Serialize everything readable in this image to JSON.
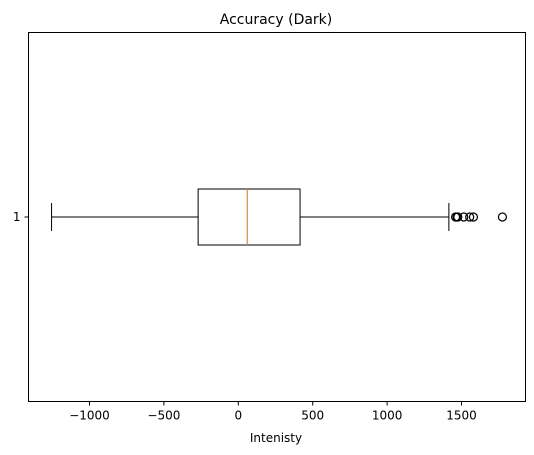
{
  "chart_data": {
    "type": "boxplot",
    "orientation": "horizontal",
    "title": "Accuracy (Dark)",
    "xlabel": "Intenisty",
    "ylabel": "",
    "xlim": [
      -1410,
      1930
    ],
    "x_ticks": [
      -1000,
      -500,
      0,
      500,
      1000,
      1500
    ],
    "x_tick_labels": [
      "−1000",
      "−500",
      "0",
      "500",
      "1000",
      "1500"
    ],
    "y_tick_labels": [
      "1"
    ],
    "grid": false,
    "boxes": [
      {
        "label": "1",
        "whisker_low": -1255,
        "q1": -270,
        "median": 60,
        "q3": 415,
        "whisker_high": 1415,
        "outliers": [
          1460,
          1470,
          1475,
          1515,
          1555,
          1580,
          1775
        ]
      }
    ],
    "colors": {
      "box": "#000000",
      "median": "#ff7f0e",
      "outlier_edge": "#000000"
    }
  }
}
